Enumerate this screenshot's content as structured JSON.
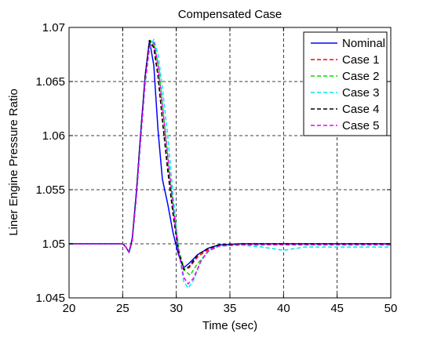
{
  "chart_data": {
    "type": "line",
    "title": "Compensated Case",
    "xlabel": "Time (sec)",
    "ylabel": "Liner Engine Pressure Ratio",
    "xlim": [
      20,
      50
    ],
    "ylim": [
      1.045,
      1.07
    ],
    "xticks": [
      20,
      25,
      30,
      35,
      40,
      45,
      50
    ],
    "yticks": [
      1.045,
      1.05,
      1.055,
      1.06,
      1.065,
      1.07
    ],
    "xtick_labels": [
      "20",
      "25",
      "30",
      "35",
      "40",
      "45",
      "50"
    ],
    "ytick_labels": [
      "1.045",
      "1.05",
      "1.055",
      "1.06",
      "1.065",
      "1.07"
    ],
    "grid": true,
    "legend_position": "top-right",
    "series": [
      {
        "name": "Nominal",
        "color": "#0000ff",
        "dash": "solid",
        "points": [
          [
            20,
            1.05
          ],
          [
            25,
            1.05
          ],
          [
            25.3,
            1.0497
          ],
          [
            25.6,
            1.0492
          ],
          [
            25.9,
            1.0505
          ],
          [
            26.3,
            1.055
          ],
          [
            26.7,
            1.0605
          ],
          [
            27.1,
            1.0655
          ],
          [
            27.5,
            1.0688
          ],
          [
            27.9,
            1.0665
          ],
          [
            28.3,
            1.0605
          ],
          [
            28.7,
            1.056
          ],
          [
            29.2,
            1.0537
          ],
          [
            29.7,
            1.051
          ],
          [
            30.2,
            1.049
          ],
          [
            30.7,
            1.0478
          ],
          [
            31.2,
            1.0482
          ],
          [
            32,
            1.049
          ],
          [
            33,
            1.0496
          ],
          [
            34,
            1.0499
          ],
          [
            36,
            1.05
          ],
          [
            50,
            1.05
          ]
        ]
      },
      {
        "name": "Case 1",
        "color": "#ff0000",
        "dash": "dashed",
        "points": [
          [
            20,
            1.05
          ],
          [
            25,
            1.05
          ],
          [
            25.3,
            1.0497
          ],
          [
            25.6,
            1.0492
          ],
          [
            25.9,
            1.0505
          ],
          [
            26.3,
            1.055
          ],
          [
            26.7,
            1.0605
          ],
          [
            27.1,
            1.0655
          ],
          [
            27.5,
            1.0688
          ],
          [
            27.9,
            1.0683
          ],
          [
            28.3,
            1.0655
          ],
          [
            28.7,
            1.0615
          ],
          [
            29.2,
            1.057
          ],
          [
            29.7,
            1.053
          ],
          [
            30.2,
            1.0495
          ],
          [
            30.7,
            1.0476
          ],
          [
            31.2,
            1.0478
          ],
          [
            32,
            1.0488
          ],
          [
            33,
            1.0495
          ],
          [
            34,
            1.0498
          ],
          [
            36,
            1.05
          ],
          [
            50,
            1.05
          ]
        ]
      },
      {
        "name": "Case 2",
        "color": "#00dd00",
        "dash": "dashed",
        "points": [
          [
            20,
            1.05
          ],
          [
            25,
            1.05
          ],
          [
            25.3,
            1.0497
          ],
          [
            25.6,
            1.0492
          ],
          [
            25.9,
            1.0505
          ],
          [
            26.3,
            1.055
          ],
          [
            26.7,
            1.0605
          ],
          [
            27.1,
            1.0655
          ],
          [
            27.6,
            1.0688
          ],
          [
            28,
            1.0682
          ],
          [
            28.4,
            1.066
          ],
          [
            28.8,
            1.062
          ],
          [
            29.3,
            1.057
          ],
          [
            29.8,
            1.0527
          ],
          [
            30.3,
            1.0492
          ],
          [
            30.8,
            1.0475
          ],
          [
            31.3,
            1.0471
          ],
          [
            32,
            1.0482
          ],
          [
            33,
            1.0493
          ],
          [
            34,
            1.0498
          ],
          [
            36,
            1.0499
          ],
          [
            50,
            1.0499
          ]
        ]
      },
      {
        "name": "Case 3",
        "color": "#00e5ee",
        "dash": "dashed",
        "points": [
          [
            20,
            1.05
          ],
          [
            25,
            1.05
          ],
          [
            25.3,
            1.0497
          ],
          [
            25.6,
            1.0492
          ],
          [
            25.9,
            1.0502
          ],
          [
            26.3,
            1.0545
          ],
          [
            26.7,
            1.0598
          ],
          [
            27.1,
            1.0648
          ],
          [
            27.5,
            1.068
          ],
          [
            27.9,
            1.0689
          ],
          [
            28.3,
            1.0675
          ],
          [
            28.7,
            1.0645
          ],
          [
            29.2,
            1.06
          ],
          [
            29.7,
            1.0545
          ],
          [
            30.2,
            1.0495
          ],
          [
            30.7,
            1.0465
          ],
          [
            31.1,
            1.0459
          ],
          [
            31.6,
            1.0466
          ],
          [
            32.3,
            1.0484
          ],
          [
            33,
            1.0494
          ],
          [
            34,
            1.0498
          ],
          [
            36,
            1.0499
          ],
          [
            38,
            1.0497
          ],
          [
            40,
            1.0494
          ],
          [
            42,
            1.0497
          ],
          [
            50,
            1.0497
          ]
        ]
      },
      {
        "name": "Case 4",
        "color": "#000000",
        "dash": "dashed",
        "points": [
          [
            20,
            1.05
          ],
          [
            25,
            1.05
          ],
          [
            25.3,
            1.0497
          ],
          [
            25.6,
            1.0492
          ],
          [
            25.9,
            1.0505
          ],
          [
            26.3,
            1.055
          ],
          [
            26.7,
            1.0605
          ],
          [
            27.1,
            1.0655
          ],
          [
            27.5,
            1.0688
          ],
          [
            27.9,
            1.0681
          ],
          [
            28.3,
            1.0655
          ],
          [
            28.7,
            1.0615
          ],
          [
            29.2,
            1.0568
          ],
          [
            29.7,
            1.0527
          ],
          [
            30.2,
            1.0493
          ],
          [
            30.7,
            1.0476
          ],
          [
            31.2,
            1.0479
          ],
          [
            32,
            1.049
          ],
          [
            33,
            1.0496
          ],
          [
            34,
            1.0499
          ],
          [
            36,
            1.05
          ],
          [
            50,
            1.05
          ]
        ]
      },
      {
        "name": "Case 5",
        "color": "#ee00ee",
        "dash": "dashed",
        "points": [
          [
            20,
            1.05
          ],
          [
            25,
            1.05
          ],
          [
            25.3,
            1.0497
          ],
          [
            25.6,
            1.0492
          ],
          [
            25.9,
            1.0503
          ],
          [
            26.3,
            1.0546
          ],
          [
            26.7,
            1.06
          ],
          [
            27.1,
            1.065
          ],
          [
            27.5,
            1.0682
          ],
          [
            27.9,
            1.0686
          ],
          [
            28.3,
            1.0665
          ],
          [
            28.7,
            1.0628
          ],
          [
            29.2,
            1.0582
          ],
          [
            29.7,
            1.0535
          ],
          [
            30.2,
            1.0493
          ],
          [
            30.7,
            1.0469
          ],
          [
            31.1,
            1.0463
          ],
          [
            31.6,
            1.0468
          ],
          [
            32.3,
            1.0484
          ],
          [
            33,
            1.0494
          ],
          [
            34,
            1.0498
          ],
          [
            36,
            1.0499
          ],
          [
            50,
            1.0499
          ]
        ]
      }
    ]
  }
}
